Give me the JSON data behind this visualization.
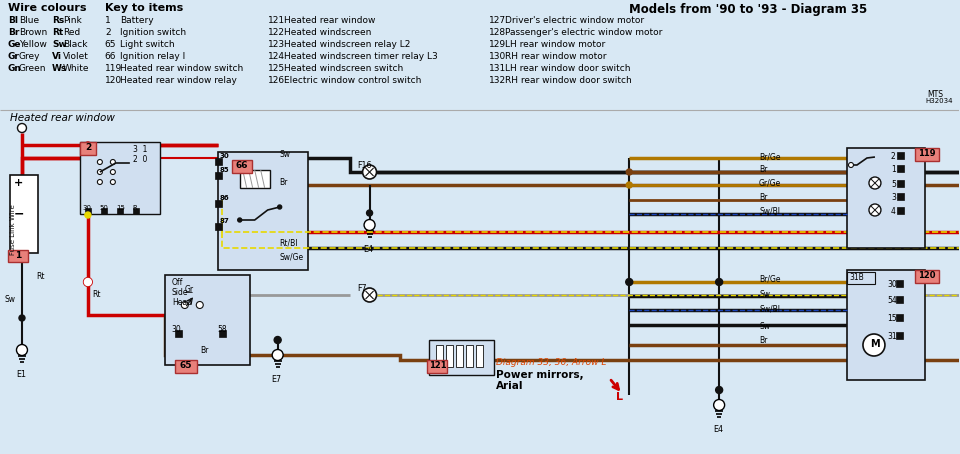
{
  "bg_color": "#d8e8f4",
  "title": "Models from '90 to '93 - Diagram 35",
  "wire_colours": [
    [
      "Bl",
      "Blue",
      "Rs",
      "Pink"
    ],
    [
      "Br",
      "Brown",
      "Rt",
      "Red"
    ],
    [
      "Ge",
      "Yellow",
      "Sw",
      "Black"
    ],
    [
      "Gr",
      "Grey",
      "Vi",
      "Violet"
    ],
    [
      "Gn",
      "Green",
      "Ws",
      "White"
    ]
  ],
  "key_items_col1": [
    [
      "1",
      "Battery"
    ],
    [
      "2",
      "Ignition switch"
    ],
    [
      "65",
      "Light switch"
    ],
    [
      "66",
      "Ignition relay I"
    ],
    [
      "119",
      "Heated rear window switch"
    ],
    [
      "120",
      "Heated rear window relay"
    ]
  ],
  "key_items_col2": [
    [
      "121",
      "Heated rear window"
    ],
    [
      "122",
      "Heated windscreen"
    ],
    [
      "123",
      "Heated windscreen relay L2"
    ],
    [
      "124",
      "Heated windscreen timer relay L3"
    ],
    [
      "125",
      "Heated windscreen switch"
    ],
    [
      "126",
      "Electric window control switch"
    ]
  ],
  "key_items_col3": [
    [
      "127",
      "Driver's electric window motor"
    ],
    [
      "128",
      "Passenger's electric window motor"
    ],
    [
      "129",
      "LH rear window motor"
    ],
    [
      "130",
      "RH rear window motor"
    ],
    [
      "131",
      "LH rear window door switch"
    ],
    [
      "132",
      "RH rear window door switch"
    ]
  ]
}
